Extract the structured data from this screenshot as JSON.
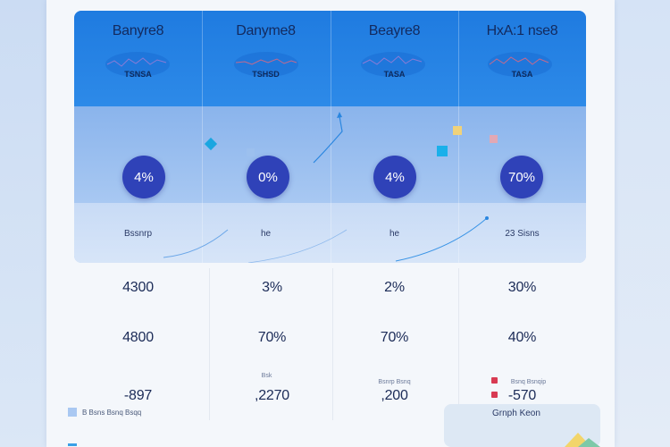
{
  "columns": [
    {
      "title": "Banyre8",
      "spark_caption": "TSNSA",
      "percent": "4%",
      "bottom_label": "Bssnrp",
      "row1": "4300",
      "row2": "4800",
      "row3_small": "",
      "row3": "-897"
    },
    {
      "title": "Danyme8",
      "spark_caption": "TSHSD",
      "percent": "0%",
      "bottom_label": "he",
      "row1": "3%",
      "row2": "70%",
      "row3_small": "Bsk",
      "row3": ",2270"
    },
    {
      "title": "Beayre8",
      "spark_caption": "TASA",
      "percent": "4%",
      "bottom_label": "he",
      "row1": "2%",
      "row2": "70%",
      "row3_small": "Bsnrp Bsnq",
      "row3": ",200"
    },
    {
      "title": "HхA:1 nse8",
      "spark_caption": "TASA",
      "percent": "70%",
      "bottom_label": "23 Sisns",
      "row1": "30%",
      "row2": "40%",
      "row3_small": "Bsnq Bsnqip",
      "row3": "-570"
    }
  ],
  "legend": {
    "left_text": "B Bsns  Bsnq Bsqq",
    "right_text": "Grnph Keon"
  },
  "colors": {
    "header_blue": "#1f7be0",
    "badge_navy": "#2f42b8",
    "accent_cyan": "#3aa0e6",
    "flag_red": "#d83a52"
  }
}
